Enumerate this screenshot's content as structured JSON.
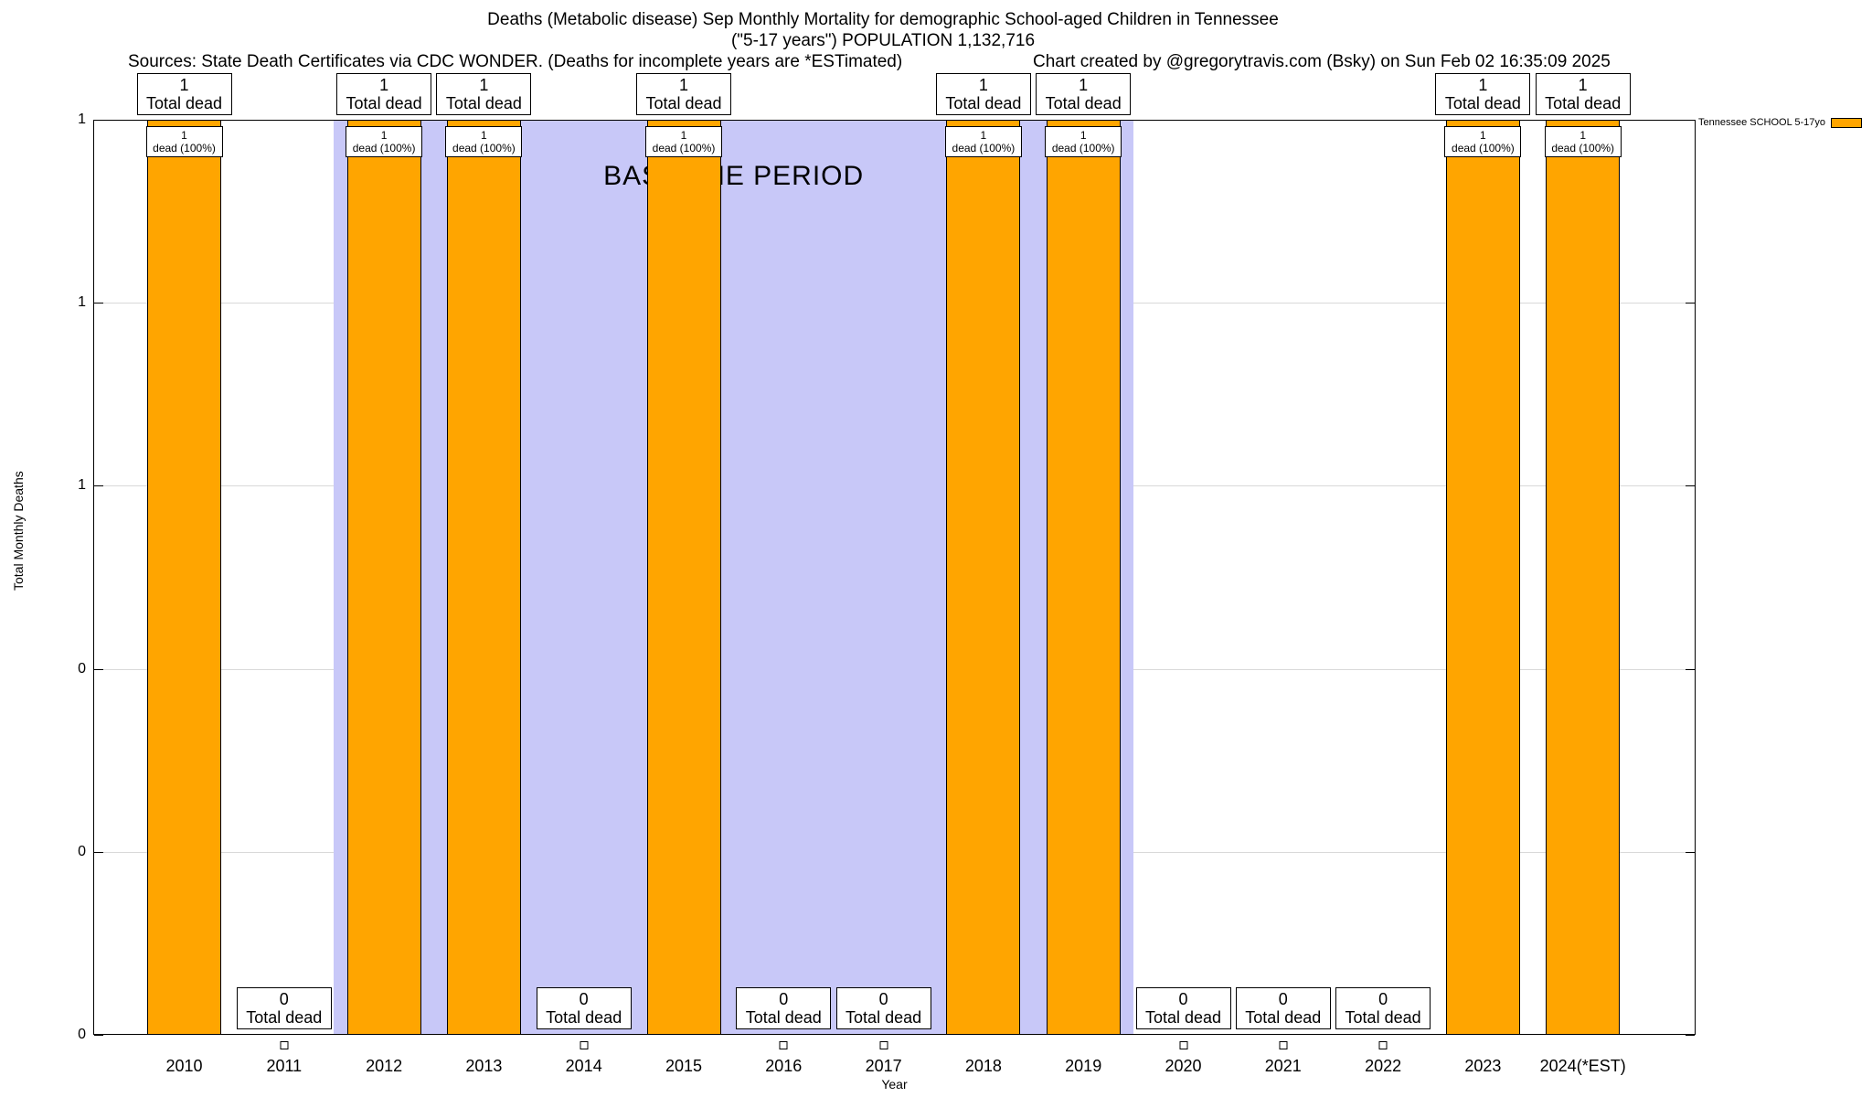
{
  "title": {
    "line1": "Deaths (Metabolic disease) Sep Monthly Mortality for demographic School-aged Children in Tennessee",
    "line2": "(\"5-17 years\") POPULATION 1,132,716"
  },
  "sources": "Sources: State Death Certificates via CDC WONDER. (Deaths for incomplete years are *ESTimated)",
  "credit": "Chart created by @gregorytravis.com (Bsky) on Sun Feb 02 16:35:09 2025",
  "axes": {
    "x_label": "Year",
    "y_label": "Total Monthly Deaths"
  },
  "legend": {
    "label": "Tennessee SCHOOL 5-17yo",
    "color": "#FFA500"
  },
  "chart_data": {
    "type": "bar",
    "title": "Deaths (Metabolic disease) Sep Monthly Mortality for demographic School-aged Children in Tennessee (\"5-17 years\") POPULATION 1,132,716",
    "xlabel": "Year",
    "ylabel": "Total Monthly Deaths",
    "ylim": [
      0,
      1
    ],
    "grid": true,
    "grid_color": "#d9d9d9",
    "legend_position": "top-right",
    "legend_entry": "Tennessee SCHOOL 5-17yo",
    "bar_color": "#FFA500",
    "categories": [
      "2010",
      "2011",
      "2012",
      "2013",
      "2014",
      "2015",
      "2016",
      "2017",
      "2018",
      "2019",
      "2020",
      "2021",
      "2022",
      "2023",
      "2024(*EST)"
    ],
    "values": [
      1,
      0,
      1,
      1,
      0,
      1,
      0,
      0,
      1,
      1,
      0,
      0,
      0,
      1,
      1
    ],
    "total_label": "Total dead",
    "dead_pct_label": "dead (100%)",
    "y_ticks": [
      {
        "value": 0.0,
        "label": "0"
      },
      {
        "value": 0.2,
        "label": "0"
      },
      {
        "value": 0.4,
        "label": "0"
      },
      {
        "value": 0.6,
        "label": "1"
      },
      {
        "value": 0.8,
        "label": "1"
      },
      {
        "value": 1.0,
        "label": "1"
      }
    ],
    "baseline_region": {
      "label": "BASELINE PERIOD",
      "start_index": 1.5,
      "end_index": 9.5,
      "start_year": 2011.5,
      "end_year": 2019.5,
      "color": "#C8C8F8"
    }
  }
}
